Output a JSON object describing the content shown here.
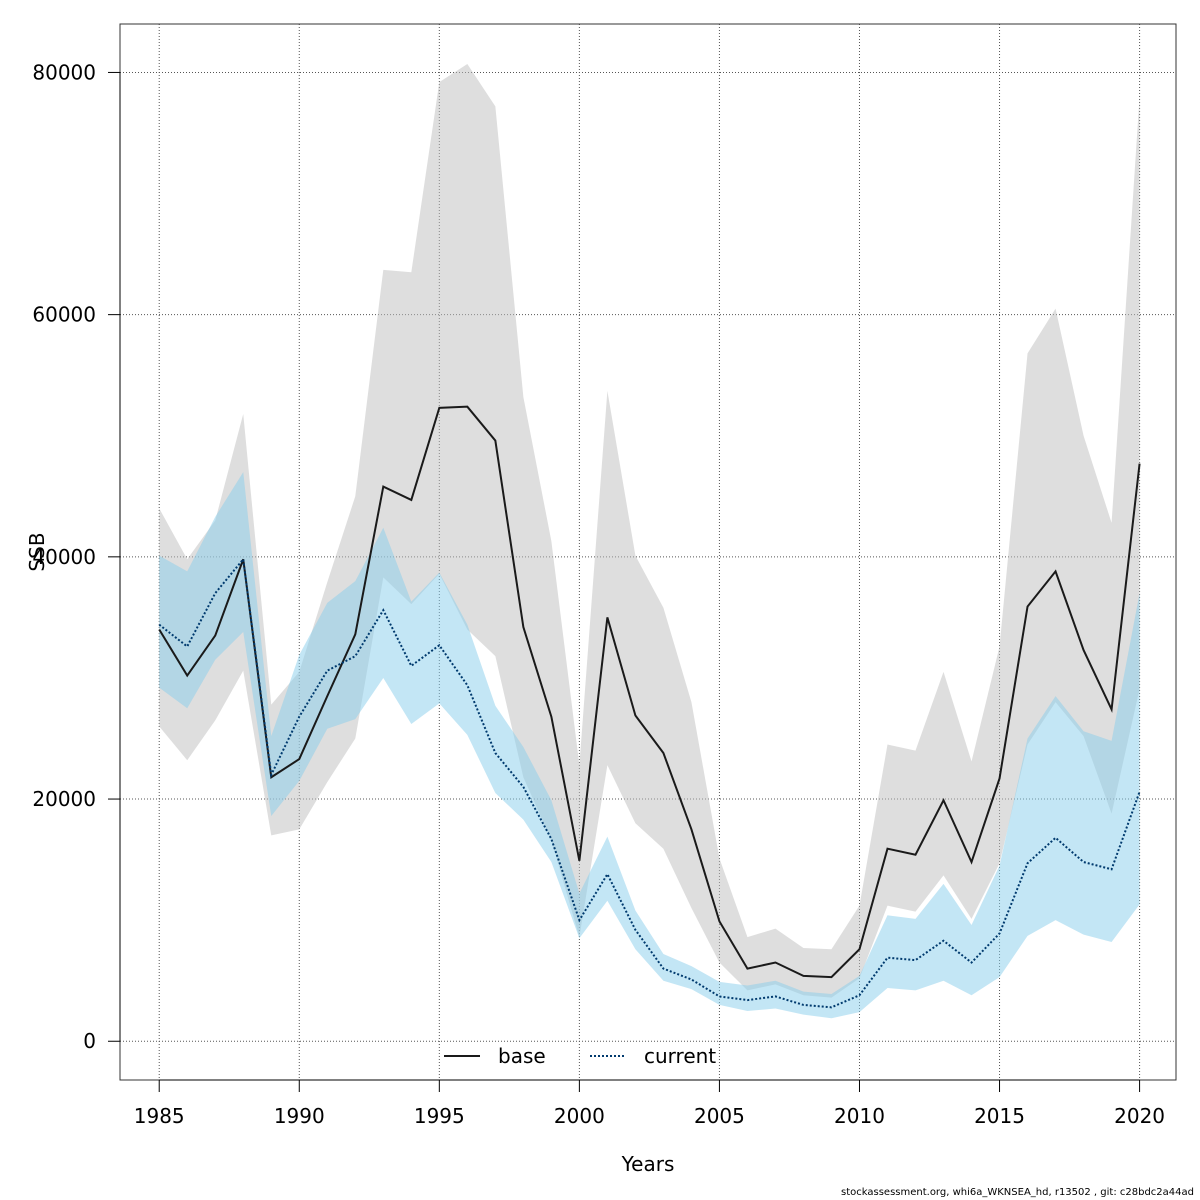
{
  "chart_data": {
    "type": "line",
    "xlabel": "Years",
    "ylabel": "SSB",
    "xlim": [
      1983.6,
      2021.3
    ],
    "ylim": [
      -3200,
      84000
    ],
    "x_ticks": [
      1985,
      1990,
      1995,
      2000,
      2005,
      2010,
      2015,
      2020
    ],
    "y_ticks": [
      0,
      20000,
      40000,
      60000,
      80000
    ],
    "grid": true,
    "legend_position": "bottom-center",
    "x": [
      1985,
      1986,
      1987,
      1988,
      1989,
      1990,
      1991,
      1992,
      1993,
      1994,
      1995,
      1996,
      1997,
      1998,
      1999,
      2000,
      2001,
      2002,
      2003,
      2004,
      2005,
      2006,
      2007,
      2008,
      2009,
      2010,
      2011,
      2012,
      2013,
      2014,
      2015,
      2016,
      2017,
      2018,
      2019,
      2020
    ],
    "series": [
      {
        "name": "base",
        "color": "#1a1a1a",
        "band_color": "#bebebe",
        "line_style": "solid",
        "values": [
          34000,
          30200,
          33500,
          39800,
          21800,
          23300,
          28500,
          33600,
          45800,
          44700,
          52300,
          52400,
          49600,
          34200,
          26800,
          14900,
          35000,
          26900,
          23800,
          17500,
          9900,
          6000,
          6500,
          5400,
          5300,
          7600,
          15900,
          15400,
          19900,
          14800,
          21700,
          35900,
          38800,
          32300,
          27400,
          47700
        ],
        "lower": [
          26000,
          23200,
          26500,
          30600,
          17000,
          17500,
          21400,
          25000,
          38300,
          36100,
          38600,
          34000,
          31800,
          21800,
          16600,
          8600,
          22800,
          18000,
          15900,
          11000,
          6500,
          4200,
          4700,
          3800,
          3600,
          5200,
          11200,
          10700,
          13700,
          10100,
          14700,
          24500,
          28000,
          25200,
          18800,
          29100
        ],
        "upper": [
          44000,
          39800,
          43000,
          51800,
          27800,
          30500,
          37900,
          45000,
          63700,
          63500,
          79200,
          80700,
          77200,
          53200,
          41300,
          22800,
          53700,
          40100,
          35800,
          28000,
          15100,
          8600,
          9300,
          7700,
          7600,
          11200,
          24500,
          24000,
          30500,
          23100,
          32600,
          56800,
          60500,
          50000,
          42800,
          78000
        ]
      },
      {
        "name": "current",
        "color": "#003a6e",
        "band_color": "#87ceeb",
        "line_style": "dotted",
        "values": [
          34400,
          32600,
          37000,
          39800,
          22000,
          26800,
          30600,
          31800,
          35600,
          31000,
          32700,
          29400,
          23800,
          21000,
          16700,
          10000,
          13800,
          9200,
          6000,
          5100,
          3700,
          3400,
          3700,
          3000,
          2800,
          3800,
          6900,
          6700,
          8300,
          6500,
          8900,
          14700,
          16800,
          14800,
          14200,
          20600
        ],
        "lower": [
          29200,
          27500,
          31500,
          33800,
          18600,
          21500,
          25800,
          26600,
          30000,
          26200,
          27900,
          25300,
          20500,
          18300,
          14800,
          8500,
          11600,
          7600,
          5000,
          4300,
          3000,
          2500,
          2700,
          2200,
          1900,
          2400,
          4400,
          4200,
          5000,
          3800,
          5300,
          8700,
          10000,
          8800,
          8200,
          11300
        ],
        "upper": [
          40100,
          38800,
          43300,
          47000,
          25200,
          31900,
          36200,
          38000,
          42400,
          36300,
          38700,
          34400,
          27700,
          24300,
          19900,
          12200,
          16900,
          10800,
          7200,
          6200,
          4900,
          4600,
          5000,
          4100,
          3900,
          5400,
          10400,
          10100,
          13000,
          9600,
          14500,
          25000,
          28500,
          25600,
          24800,
          37000
        ]
      }
    ]
  },
  "footer": "stockassessment.org, whi6a_WKNSEA_hd, r13502 , git: c28bdc2a44ad"
}
